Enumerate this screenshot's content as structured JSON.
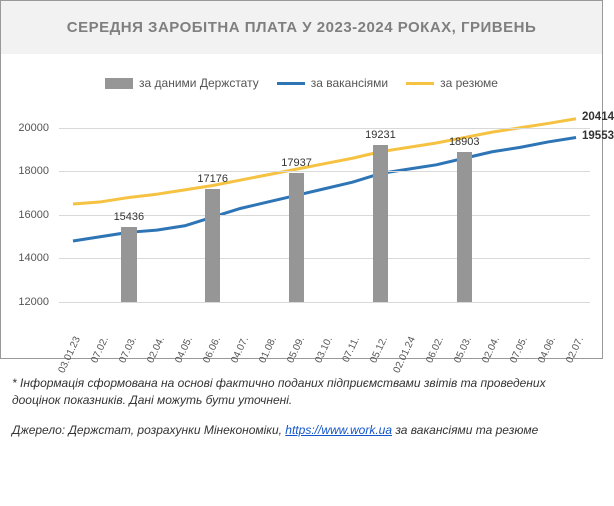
{
  "chart": {
    "type": "bar+line",
    "title": "СЕРЕДНЯ ЗАРОБІТНА ПЛАТА У 2023-2024 РОКАХ, ГРИВЕНЬ",
    "title_color": "#7f7f7f",
    "title_fontsize": 15,
    "header_bg": "#f2f2f2",
    "background_color": "#ffffff",
    "border_color": "#999999",
    "grid_color": "#d9d9d9",
    "ylim": [
      12000,
      21000
    ],
    "yticks": [
      12000,
      14000,
      16000,
      18000,
      20000
    ],
    "x_labels": [
      "03.01.23",
      "07.02.",
      "07.03.",
      "02.04.",
      "04.05.",
      "06.06.",
      "04.07.",
      "01.08.",
      "05.09.",
      "03.10.",
      "07.11.",
      "05.12.",
      "02.01.24",
      "06.02.",
      "05.03.",
      "02.04.",
      "07.05.",
      "04.06.",
      "02.07."
    ],
    "x_label_fontsize": 10,
    "x_label_rotation": -65,
    "y_label_fontsize": 11,
    "legend": {
      "items": [
        {
          "label": "за даними Держстату",
          "type": "bar",
          "color": "#969696"
        },
        {
          "label": "за вакансіями",
          "type": "line",
          "color": "#2e75b6"
        },
        {
          "label": "за резюме",
          "type": "line",
          "color": "#f5c242"
        }
      ],
      "fontsize": 12
    },
    "bars": {
      "series_name": "Держстат",
      "color": "#969696",
      "width_frac": 0.55,
      "points": [
        {
          "x_index": 2,
          "value": 15436,
          "label": "15436"
        },
        {
          "x_index": 5,
          "value": 17176,
          "label": "17176"
        },
        {
          "x_index": 8,
          "value": 17937,
          "label": "17937"
        },
        {
          "x_index": 11,
          "value": 19231,
          "label": "19231"
        },
        {
          "x_index": 14,
          "value": 18903,
          "label": "18903"
        }
      ]
    },
    "lines": [
      {
        "name": "за вакансіями",
        "color": "#2e75b6",
        "width": 3,
        "values": [
          14800,
          15000,
          15200,
          15300,
          15500,
          15900,
          16300,
          16600,
          16900,
          17200,
          17500,
          17900,
          18100,
          18300,
          18600,
          18900,
          19100,
          19350,
          19553
        ],
        "end_label": "19553"
      },
      {
        "name": "за резюме",
        "color": "#f5c242",
        "width": 3,
        "values": [
          16500,
          16600,
          16800,
          16950,
          17150,
          17350,
          17600,
          17850,
          18100,
          18350,
          18600,
          18900,
          19100,
          19300,
          19550,
          19800,
          20000,
          20200,
          20414
        ],
        "end_label": "20414"
      }
    ]
  },
  "footnote": "* Інформація сформована на основі фактично поданих підприємствами звітів та проведених дооцінок показників. Дані можуть бути уточнені.",
  "source": {
    "prefix": "Джерело: Держстат, розрахунки Мінекономіки, ",
    "link_text": "https://www.work.ua",
    "suffix": " за вакансіями та резюме"
  }
}
